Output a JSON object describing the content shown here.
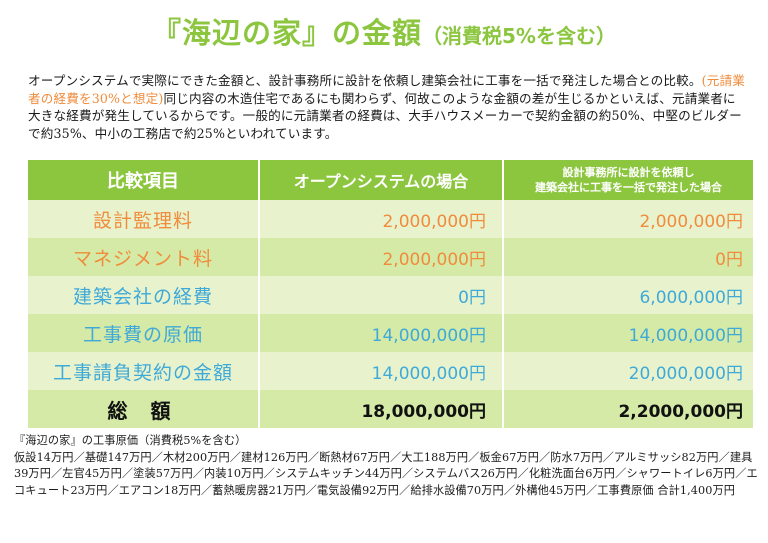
{
  "title": {
    "main": "『海辺の家』の金額",
    "sub": "（消費税5%を含む）"
  },
  "intro": {
    "part1": "オープンシステムで実際にできた金額と、設計事務所に設計を依頼し建築会社に工事を一括で発注した場合との比較。",
    "highlight": "(元請業者の経費を30%と想定)",
    "part2": "同じ内容の木造住宅であるにも関わらず、何故このような金額の差が生じるかといえば、元請業者に大きな経費が発生しているからです。一般的に元請業者の経費は、大手ハウスメーカーで契約金額の約50%、中堅のビルダーで約35%、中小の工務店で約25%といわれています。"
  },
  "table": {
    "headers": {
      "item": "比較項目",
      "open": "オープンシステムの場合",
      "general_line1": "設計事務所に設計を依頼し",
      "general_line2": "建築会社に工事を一括で発注した場合"
    },
    "rows": [
      {
        "label": "設計監理料",
        "open": "2,000,000円",
        "general": "2,000,000円"
      },
      {
        "label": "マネジメント料",
        "open": "2,000,000円",
        "general": "0円"
      },
      {
        "label": "建築会社の経費",
        "open": "0円",
        "general": "6,000,000円"
      },
      {
        "label": "工事費の原価",
        "open": "14,000,000円",
        "general": "14,000,000円"
      },
      {
        "label": "工事請負契約の金額",
        "open": "14,000,000円",
        "general": "20,000,000円"
      }
    ],
    "total": {
      "label": "総 額",
      "open": "18,000,000円",
      "general": "2,2000,000円"
    }
  },
  "footer": {
    "heading": "『海辺の家』の工事原価（消費税5%を含む）",
    "body": "仮設14万円／基礎147万円／木材200万円／建材126万円／断熱材67万円／大工188万円／板金67万円／防水7万円／アルミサッシ82万円／建具39万円／左官45万円／塗装57万円／内装10万円／システムキッチン44万円／システムバス26万円／化粧洗面台6万円／シャワートイレ6万円／エコキュート23万円／エアコン18万円／蓄熱暖房器21万円／電気設備92万円／給排水設備70万円／外構他45万円／工事費原価 合計1,400万円"
  },
  "colors": {
    "green": "#8cc63f",
    "orange": "#f08c3c",
    "blue": "#3fa9d8"
  }
}
